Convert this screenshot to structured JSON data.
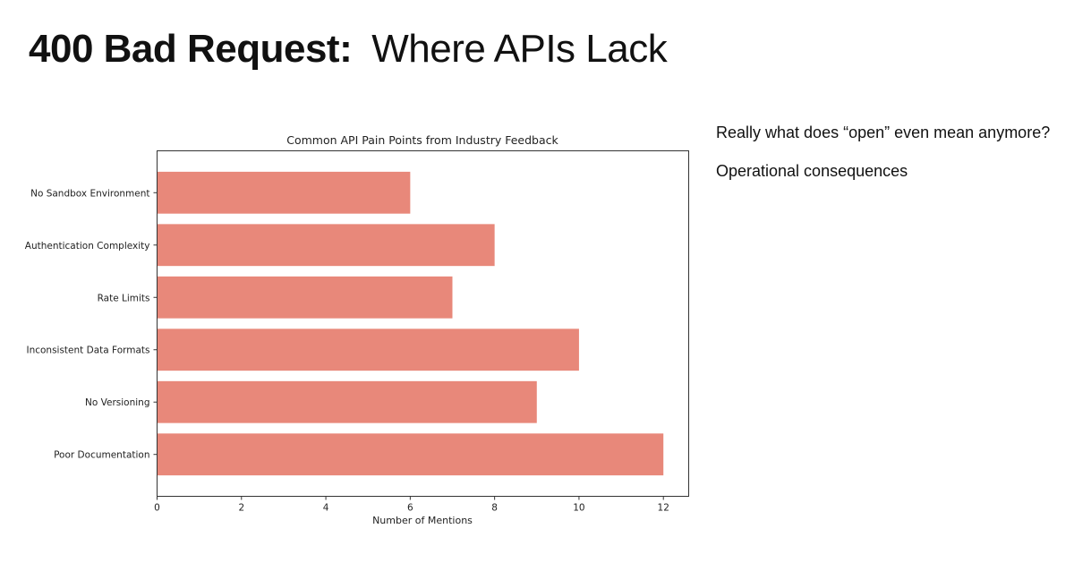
{
  "slide": {
    "title_bold": "400 Bad Request:",
    "title_rest": "Where APIs Lack",
    "notes": [
      "Really what does “open” even mean anymore?",
      "Operational consequences"
    ]
  },
  "chart_data": {
    "type": "bar",
    "orientation": "horizontal",
    "title": "Common API Pain Points from Industry Feedback",
    "xlabel": "Number of Mentions",
    "ylabel": "",
    "categories": [
      "No Sandbox Environment",
      "Authentication Complexity",
      "Rate Limits",
      "Inconsistent Data Formats",
      "No Versioning",
      "Poor Documentation"
    ],
    "values": [
      6,
      8,
      7,
      10,
      9,
      12
    ],
    "xlim": [
      0,
      12.6
    ],
    "xticks": [
      "0",
      "2",
      "4",
      "6",
      "8",
      "10",
      "12"
    ],
    "grid": false,
    "bar_color": "#e8887a"
  }
}
